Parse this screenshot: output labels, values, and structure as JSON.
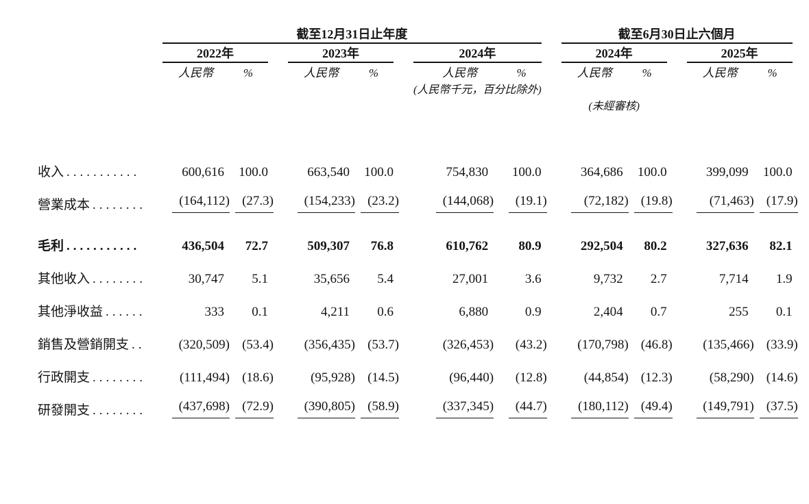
{
  "colors": {
    "ink": "#141414",
    "background": "#ffffff"
  },
  "table": {
    "annual": {
      "title": "截至12月31日止年度",
      "years": [
        "2022年",
        "2023年",
        "2024年"
      ]
    },
    "interim": {
      "title": "截至6月30日止六個月",
      "years": [
        "2024年",
        "2025年"
      ]
    },
    "unit_rmb_label": "人民幣",
    "unit_pct_label": "%",
    "note_units": "(人民幣千元，百分比除外)",
    "note_unaudited": "(未經審核)",
    "rows": [
      {
        "label": "收入",
        "dots": "...........",
        "bold": false,
        "ruled": false,
        "gap_before": false,
        "values": [
          "600,616",
          "100.0",
          "663,540",
          "100.0",
          "754,830",
          "100.0",
          "364,686",
          "100.0",
          "399,099",
          "100.0"
        ]
      },
      {
        "label": "營業成本",
        "dots": "........",
        "bold": false,
        "ruled": true,
        "gap_before": false,
        "values": [
          "(164,112)",
          "(27.3)",
          "(154,233)",
          "(23.2)",
          "(144,068)",
          "(19.1)",
          "(72,182)",
          "(19.8)",
          "(71,463)",
          "(17.9)"
        ]
      },
      {
        "label": "毛利",
        "dots": "...........",
        "bold": true,
        "ruled": false,
        "gap_before": true,
        "values": [
          "436,504",
          "72.7",
          "509,307",
          "76.8",
          "610,762",
          "80.9",
          "292,504",
          "80.2",
          "327,636",
          "82.1"
        ]
      },
      {
        "label": "其他收入",
        "dots": "........",
        "bold": false,
        "ruled": false,
        "gap_before": false,
        "values": [
          "30,747",
          "5.1",
          "35,656",
          "5.4",
          "27,001",
          "3.6",
          "9,732",
          "2.7",
          "7,714",
          "1.9"
        ]
      },
      {
        "label": "其他淨收益",
        "dots": "......",
        "bold": false,
        "ruled": false,
        "gap_before": false,
        "values": [
          "333",
          "0.1",
          "4,211",
          "0.6",
          "6,880",
          "0.9",
          "2,404",
          "0.7",
          "255",
          "0.1"
        ]
      },
      {
        "label": "銷售及營銷開支",
        "dots": "..",
        "bold": false,
        "ruled": false,
        "gap_before": false,
        "values": [
          "(320,509)",
          "(53.4)",
          "(356,435)",
          "(53.7)",
          "(326,453)",
          "(43.2)",
          "(170,798)",
          "(46.8)",
          "(135,466)",
          "(33.9)"
        ]
      },
      {
        "label": "行政開支",
        "dots": "........",
        "bold": false,
        "ruled": false,
        "gap_before": false,
        "values": [
          "(111,494)",
          "(18.6)",
          "(95,928)",
          "(14.5)",
          "(96,440)",
          "(12.8)",
          "(44,854)",
          "(12.3)",
          "(58,290)",
          "(14.6)"
        ]
      },
      {
        "label": "研發開支",
        "dots": "........",
        "bold": false,
        "ruled": true,
        "gap_before": false,
        "values": [
          "(437,698)",
          "(72.9)",
          "(390,805)",
          "(58.9)",
          "(337,345)",
          "(44.7)",
          "(180,112)",
          "(49.4)",
          "(149,791)",
          "(37.5)"
        ]
      }
    ]
  }
}
